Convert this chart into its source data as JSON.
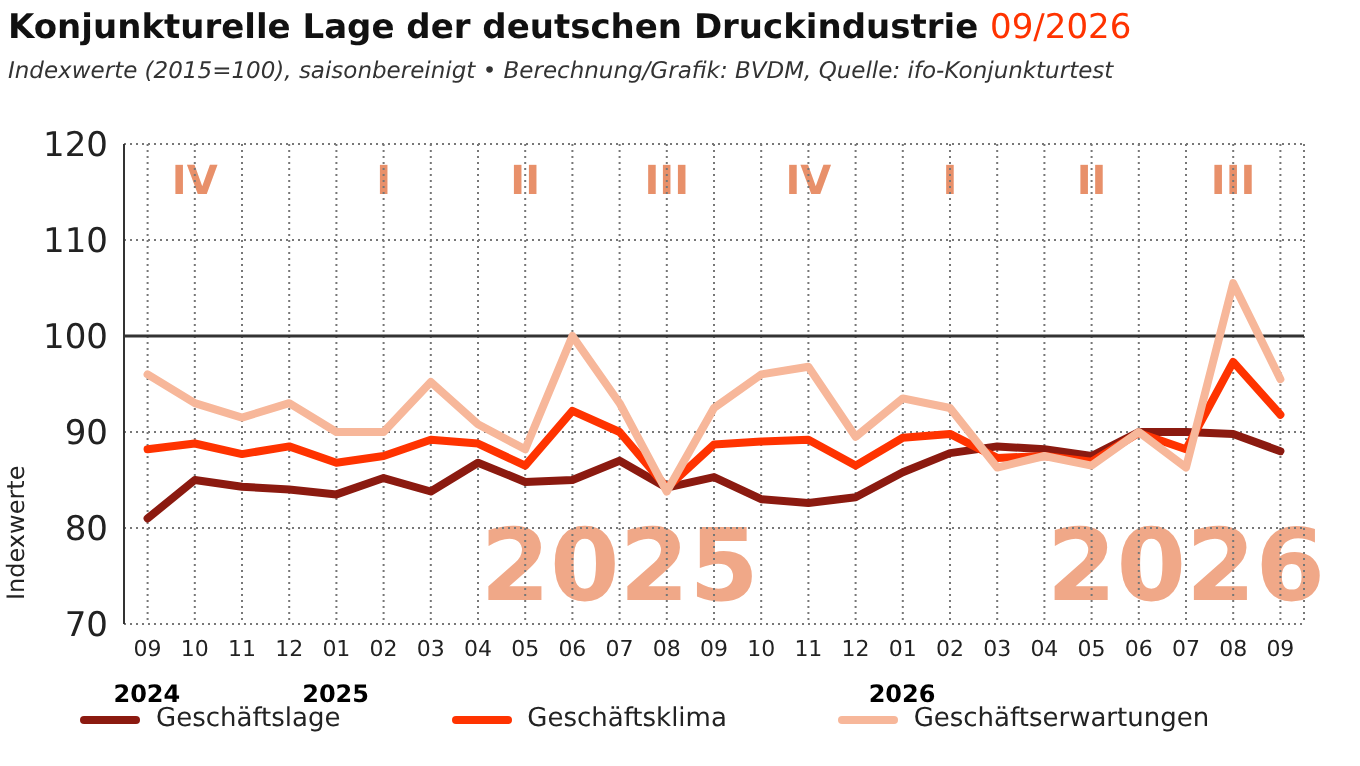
{
  "chart_data": {
    "type": "line",
    "title": "Konjunkturelle Lage der deutschen Druckindustrie 09/2026",
    "subtitle": "Indexwerte (2015=100), saisonbereinigt • Berechnung/Grafik: BVDM, Quelle: ifo-Konjunkturtest",
    "ylabel": "Indexwerte",
    "categories": [
      "09",
      "10",
      "11",
      "12",
      "01",
      "02",
      "03",
      "04",
      "05",
      "06",
      "07",
      "08",
      "09",
      "10",
      "11",
      "12",
      "01",
      "02",
      "03",
      "04",
      "05",
      "06",
      "07",
      "08",
      "09"
    ],
    "series": [
      {
        "name": "Geschäftslage",
        "color": "#8b1a10",
        "values": [
          81,
          85,
          84.3,
          84,
          83.5,
          85.2,
          83.8,
          86.8,
          84.8,
          85,
          87,
          84.2,
          85.3,
          83,
          82.6,
          83.2,
          85.8,
          87.8,
          88.5,
          88.2,
          87.5,
          90,
          90,
          89.8,
          88
        ]
      },
      {
        "name": "Geschäftsklima",
        "color": "#ff3300",
        "values": [
          88.2,
          88.8,
          87.7,
          88.5,
          86.8,
          87.5,
          89.2,
          88.8,
          86.5,
          92.2,
          90,
          84.2,
          88.7,
          89,
          89.2,
          86.5,
          89.4,
          89.8,
          87.3,
          87.5,
          86.9,
          89.9,
          88.2,
          97.3,
          91.8
        ]
      },
      {
        "name": "Geschäftserwartungen",
        "color": "#f7b79a",
        "values": [
          96,
          93,
          91.5,
          93,
          90,
          90,
          95.2,
          90.8,
          88.2,
          100,
          93,
          83.8,
          92.5,
          96,
          96.8,
          89.5,
          93.5,
          92.5,
          86.3,
          87.5,
          86.5,
          90,
          86.3,
          105.5,
          95.5
        ]
      }
    ],
    "ylim": [
      70,
      120
    ],
    "yticks": [
      70,
      80,
      90,
      100,
      110,
      120
    ],
    "grid": true,
    "legend": "bottom",
    "marker": "none",
    "line_style": "solid",
    "ref_lines": [
      {
        "axis": "y",
        "value": 100,
        "color": "#333333",
        "line_style": "solid"
      }
    ],
    "annotations": [
      "IV",
      "I",
      "II",
      "III",
      "IV",
      "I",
      "II",
      "III",
      "2025",
      "2026",
      "2024",
      "2025",
      "2026"
    ]
  }
}
